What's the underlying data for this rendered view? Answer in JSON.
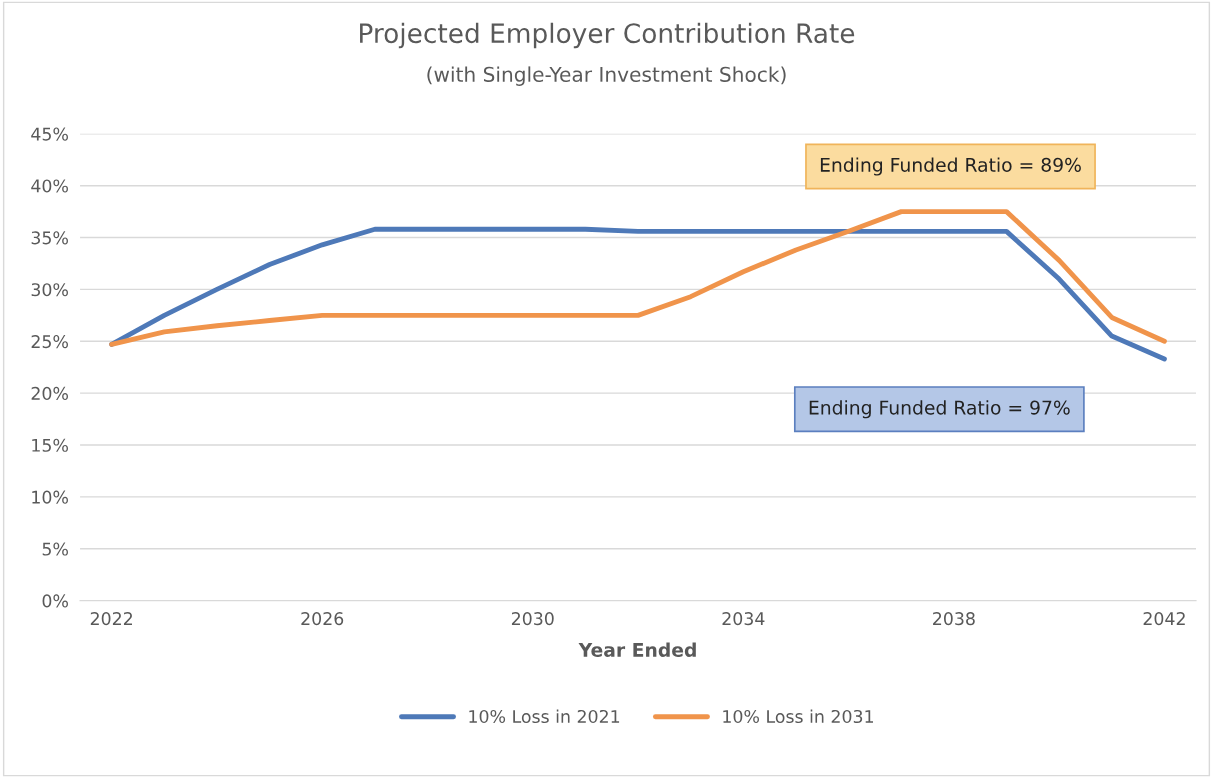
{
  "chart_data": {
    "type": "line",
    "title": "Projected Employer Contribution Rate",
    "subtitle": "(with Single-Year Investment Shock)",
    "xlabel": "Year Ended",
    "categories": [
      "2022",
      null,
      null,
      null,
      "2026",
      null,
      null,
      null,
      "2030",
      null,
      null,
      null,
      "2034",
      null,
      null,
      null,
      "2038",
      null,
      null,
      null,
      "2042"
    ],
    "series": [
      {
        "name": "10% Loss in 2021",
        "color": "#4e79b8",
        "values": [
          24.7,
          27.5,
          30.0,
          32.4,
          34.3,
          35.8,
          35.8,
          35.8,
          35.8,
          35.8,
          35.6,
          35.6,
          35.6,
          35.6,
          35.6,
          35.6,
          35.6,
          35.6,
          31.0,
          25.5,
          23.3
        ]
      },
      {
        "name": "10% Loss in 2031",
        "color": "#f0944b",
        "values": [
          24.7,
          25.9,
          26.5,
          27.0,
          27.5,
          27.5,
          27.5,
          27.5,
          27.5,
          27.5,
          27.5,
          29.3,
          31.7,
          33.8,
          35.6,
          37.5,
          37.5,
          37.5,
          32.8,
          27.3,
          25.0
        ]
      }
    ],
    "ylim": [
      0,
      45
    ],
    "yticks": [
      {
        "value": 0,
        "label": "0%"
      },
      {
        "value": 5,
        "label": "5%"
      },
      {
        "value": 10,
        "label": "10%"
      },
      {
        "value": 15,
        "label": "15%"
      },
      {
        "value": 20,
        "label": "20%"
      },
      {
        "value": 25,
        "label": "25%"
      },
      {
        "value": 30,
        "label": "30%"
      },
      {
        "value": 35,
        "label": "35%"
      },
      {
        "value": 40,
        "label": "40%"
      },
      {
        "value": 45,
        "label": "45%"
      }
    ],
    "annotations": [
      "Ending Funded Ratio = 89%",
      "Ending Funded Ratio = 97%"
    ],
    "grid": "y",
    "legend": "bottom",
    "marker": "none",
    "line_style": "solid"
  }
}
